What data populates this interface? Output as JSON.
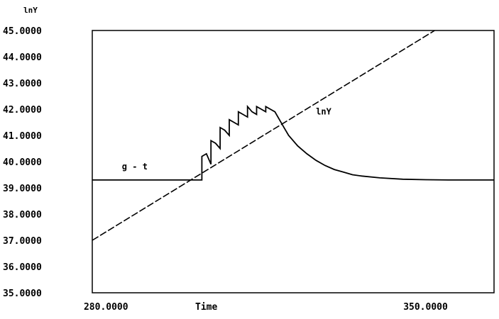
{
  "chart_data": {
    "type": "line",
    "ylabel": "lnY",
    "xlabel": "Time",
    "ylim": [
      35,
      45
    ],
    "xlim": [
      277,
      365
    ],
    "y_ticks": [
      "35.0000",
      "36.0000",
      "37.0000",
      "38.0000",
      "39.0000",
      "40.0000",
      "41.0000",
      "42.0000",
      "43.0000",
      "44.0000",
      "45.0000"
    ],
    "x_ticks": [
      {
        "value": 280,
        "label": "280.0000"
      },
      {
        "value": 350,
        "label": "350.0000"
      }
    ],
    "grid": false,
    "series": [
      {
        "name": "g-t",
        "label": "g - t",
        "style": "solid",
        "x": [
          277,
          301,
          301,
          302,
          303,
          303,
          304,
          305,
          305,
          306,
          307,
          307,
          308,
          309,
          309,
          310,
          311,
          311,
          312,
          313,
          313,
          314,
          315,
          315,
          316,
          317,
          318,
          319,
          320,
          322,
          324,
          326,
          328,
          330,
          332,
          334,
          336,
          340,
          345,
          350,
          355,
          360,
          365
        ],
        "y": [
          39.3,
          39.3,
          40.2,
          40.3,
          39.9,
          40.8,
          40.7,
          40.5,
          41.3,
          41.2,
          41.0,
          41.6,
          41.5,
          41.4,
          41.9,
          41.8,
          41.7,
          42.1,
          41.9,
          41.8,
          42.1,
          42.0,
          41.9,
          42.1,
          42.0,
          41.9,
          41.6,
          41.3,
          41.0,
          40.6,
          40.3,
          40.05,
          39.85,
          39.7,
          39.6,
          39.5,
          39.45,
          39.38,
          39.33,
          39.31,
          39.3,
          39.3,
          39.3
        ]
      },
      {
        "name": "lnY",
        "label": "lnY",
        "style": "dashed",
        "x": [
          277,
          352
        ],
        "y": [
          37.0,
          45.0
        ]
      }
    ]
  }
}
